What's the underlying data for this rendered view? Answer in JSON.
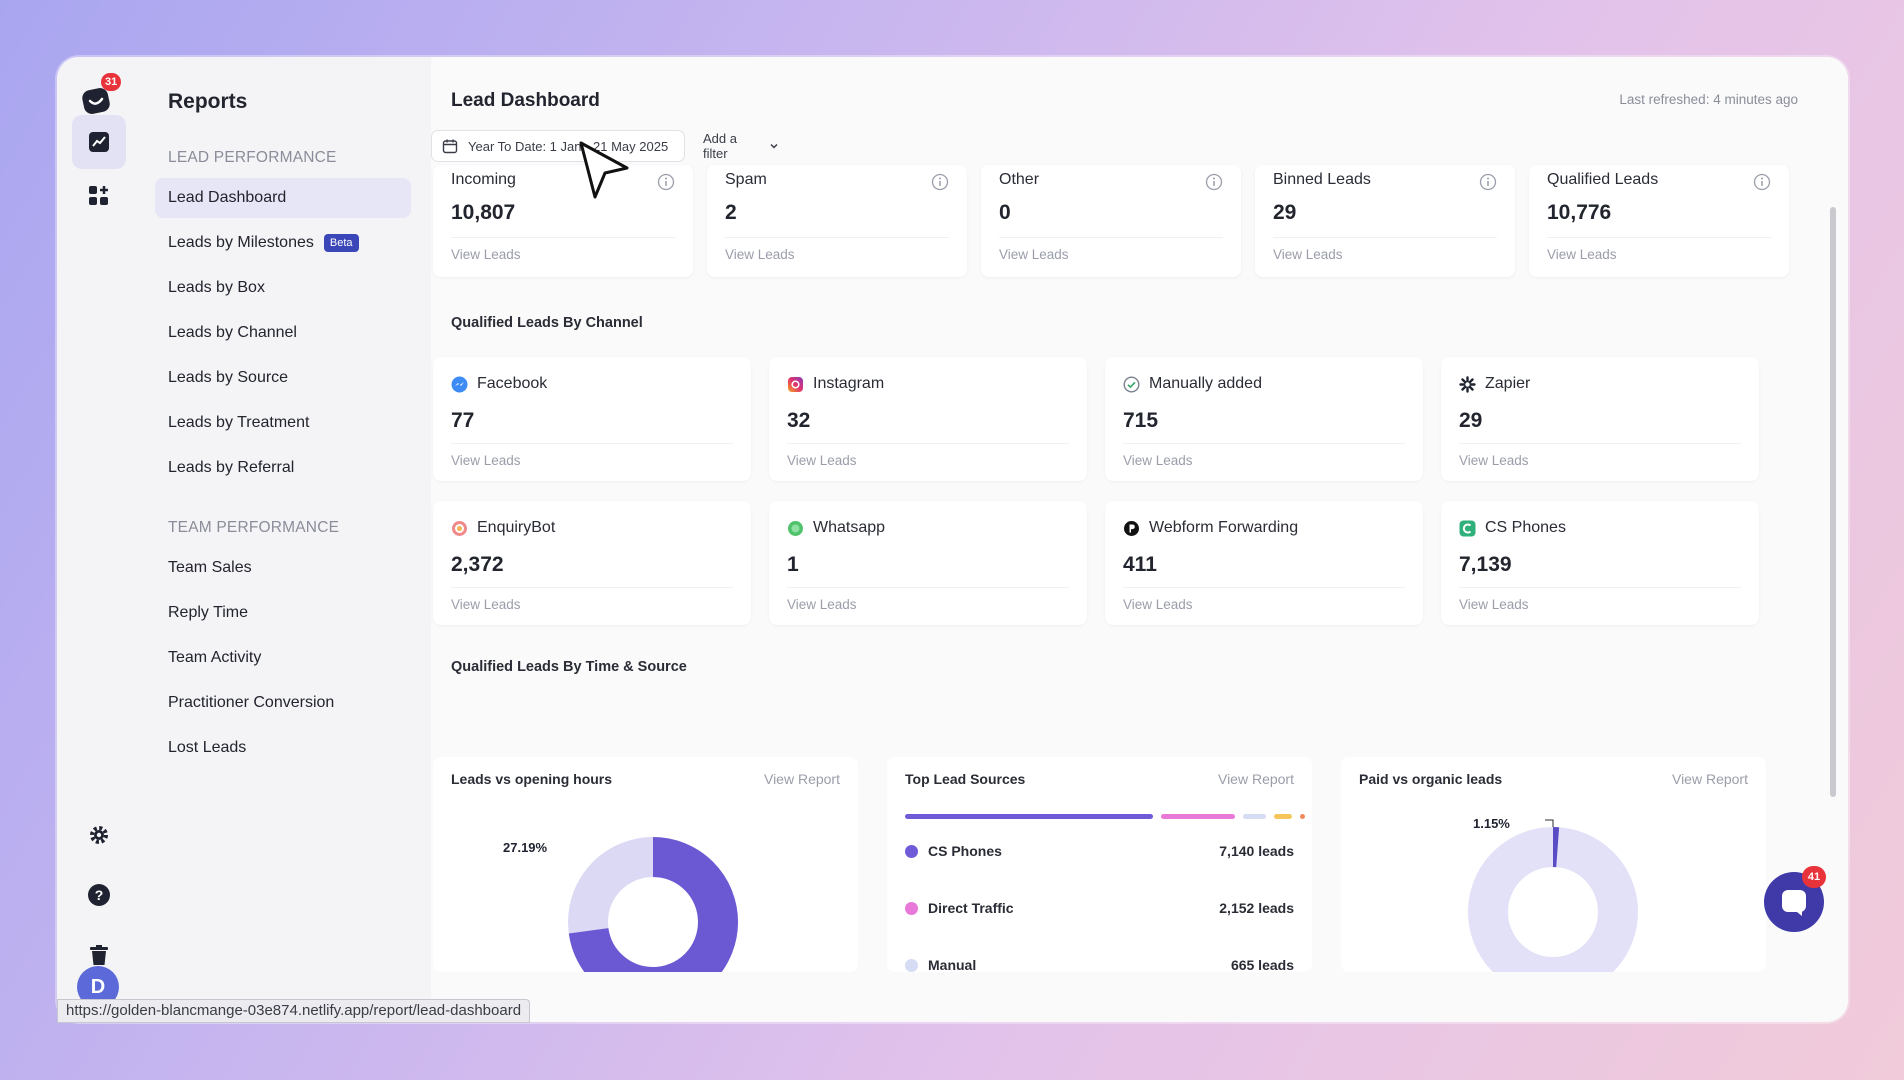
{
  "rail": {
    "notification_count": "31",
    "avatar_letter": "D"
  },
  "sidebar": {
    "title": "Reports",
    "lead_section": "LEAD PERFORMANCE",
    "lead_items": [
      "Lead Dashboard",
      "Leads by Milestones",
      "Leads by Box",
      "Leads by Channel",
      "Leads by Source",
      "Leads by Treatment",
      "Leads by Referral"
    ],
    "beta_label": "Beta",
    "team_section": "TEAM PERFORMANCE",
    "team_items": [
      "Team Sales",
      "Reply Time",
      "Team Activity",
      "Practitioner Conversion",
      "Lost Leads"
    ]
  },
  "main": {
    "title": "Lead Dashboard",
    "refreshed": "Last refreshed: 4 minutes ago",
    "date_filter": "Year To Date: 1 Jan - 21 May 2025",
    "add_filter": "Add a filter",
    "view_leads": "View Leads",
    "view_report": "View Report",
    "stats": [
      {
        "label": "Incoming",
        "value": "10,807"
      },
      {
        "label": "Spam",
        "value": "2"
      },
      {
        "label": "Other",
        "value": "0"
      },
      {
        "label": "Binned Leads",
        "value": "29"
      },
      {
        "label": "Qualified Leads",
        "value": "10,776"
      }
    ],
    "channel_section": "Qualified Leads By Channel",
    "channels": [
      {
        "label": "Facebook",
        "value": "77",
        "icon": "facebook-icon"
      },
      {
        "label": "Instagram",
        "value": "32",
        "icon": "instagram-icon"
      },
      {
        "label": "Manually added",
        "value": "715",
        "icon": "check-circle-icon"
      },
      {
        "label": "Zapier",
        "value": "29",
        "icon": "zapier-icon"
      },
      {
        "label": "EnquiryBot",
        "value": "2,372",
        "icon": "enquirybot-icon"
      },
      {
        "label": "Whatsapp",
        "value": "1",
        "icon": "whatsapp-icon"
      },
      {
        "label": "Webform Forwarding",
        "value": "411",
        "icon": "webform-icon"
      },
      {
        "label": "CS Phones",
        "value": "7,139",
        "icon": "cs-phones-icon"
      }
    ],
    "time_section": "Qualified Leads By Time & Source",
    "reports": {
      "opening_hours": {
        "title": "Leads vs opening hours",
        "pct_label": "27.19%",
        "fraction": 0.2719
      },
      "top_sources": {
        "title": "Top Lead Sources",
        "rows": [
          {
            "name": "CS Phones",
            "amount": "7,140 leads",
            "color": "#6f5ad8"
          },
          {
            "name": "Direct Traffic",
            "amount": "2,152 leads",
            "color": "#e879d8"
          },
          {
            "name": "Manual",
            "amount": "665 leads",
            "color": "#d6dcf3"
          }
        ],
        "bar_segments": [
          {
            "value": 7140,
            "color": "#6f5ad8"
          },
          {
            "value": 2152,
            "color": "#e879d8"
          },
          {
            "value": 665,
            "color": "#d6dcf3"
          },
          {
            "value": 500,
            "color": "#f6c65b"
          },
          {
            "value": 150,
            "color": "#f08a5d"
          }
        ]
      },
      "paid_organic": {
        "title": "Paid vs organic leads",
        "pct_label": "1.15%",
        "fraction": 0.0115
      }
    }
  },
  "status_url": "https://golden-blancmange-03e874.netlify.app/report/lead-dashboard",
  "chat_badge": "41"
}
